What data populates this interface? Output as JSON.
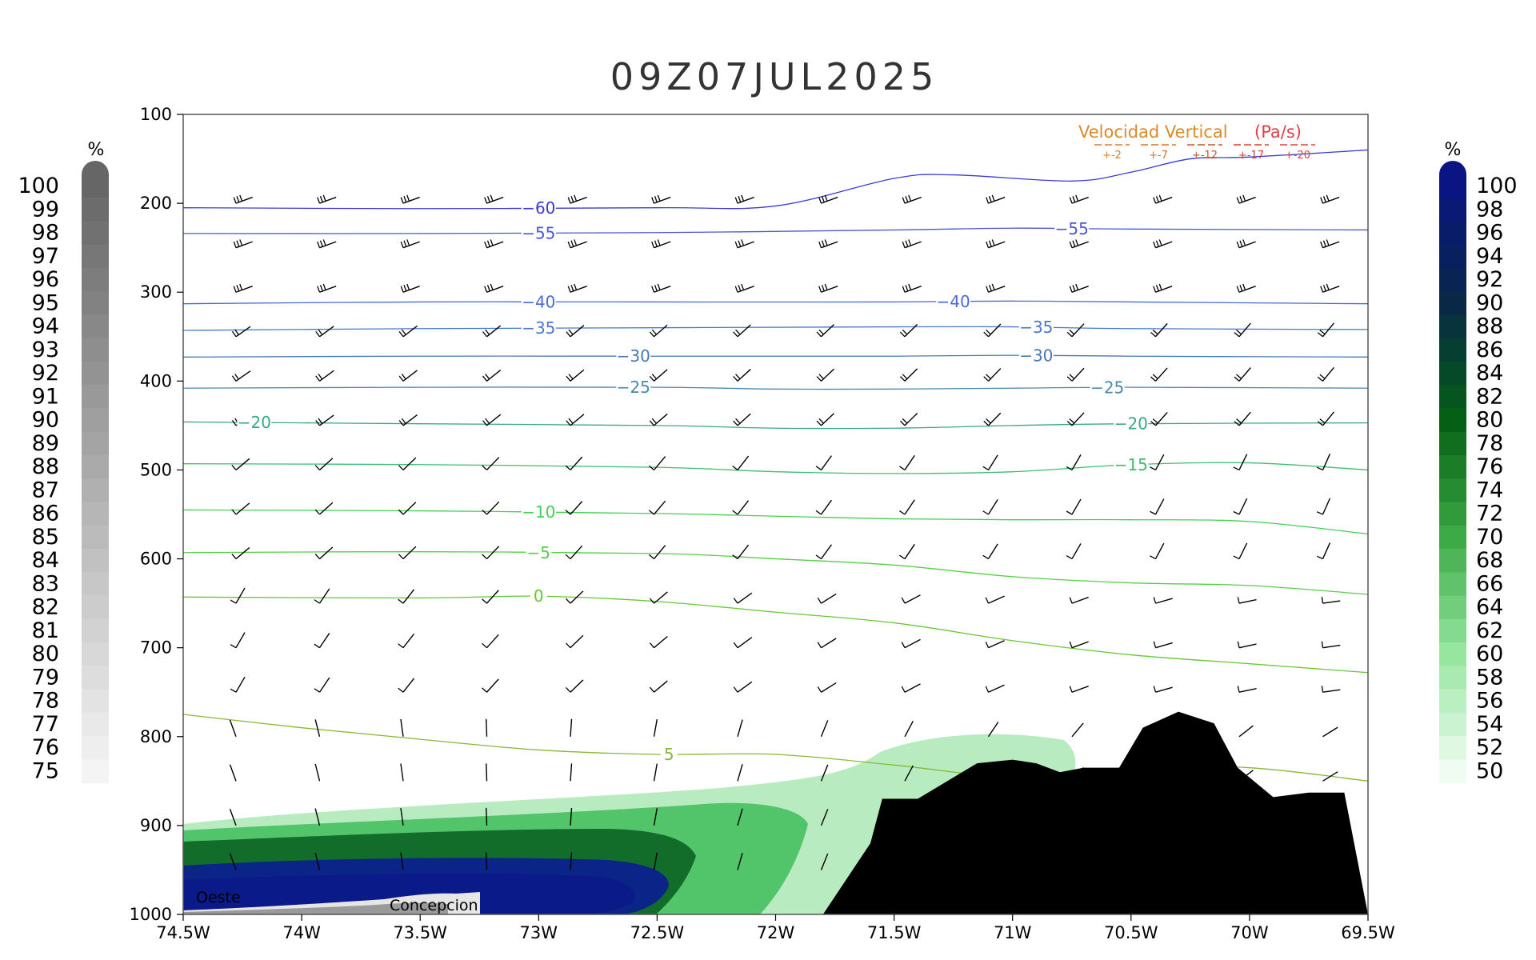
{
  "chart_data": {
    "type": "cross-section",
    "title": "09Z07JUL2025",
    "x_ticks": [
      "74.5W",
      "74W",
      "73.5W",
      "73W",
      "72.5W",
      "72W",
      "71.5W",
      "71W",
      "70.5W",
      "70W",
      "69.5W"
    ],
    "y_ticks": [
      "100",
      "200",
      "300",
      "400",
      "500",
      "600",
      "700",
      "800",
      "900",
      "1000"
    ],
    "xlim": [
      -74.5,
      -69.5
    ],
    "ylim": [
      1000,
      100
    ],
    "grid": false,
    "temperature_contours": [
      {
        "label": "-60",
        "color": "#3a3ad8",
        "points": [
          [
            -74.5,
            205
          ],
          [
            -73.5,
            206
          ],
          [
            -72.5,
            205
          ],
          [
            -72.0,
            203
          ],
          [
            -71.5,
            172
          ],
          [
            -71.25,
            168
          ],
          [
            -70.75,
            175
          ],
          [
            -70.5,
            165
          ],
          [
            -70.25,
            150
          ],
          [
            -70.0,
            148
          ],
          [
            -69.5,
            140
          ]
        ]
      },
      {
        "label": "-55",
        "color": "#4a58d8",
        "points": [
          [
            -74.5,
            234
          ],
          [
            -73.5,
            234
          ],
          [
            -72.5,
            233
          ],
          [
            -71.5,
            230
          ],
          [
            -71.0,
            228
          ],
          [
            -70.5,
            229
          ],
          [
            -69.5,
            230
          ]
        ]
      },
      {
        "label": "-40",
        "color": "#4a6ad8",
        "points": [
          [
            -74.5,
            313
          ],
          [
            -73.5,
            311
          ],
          [
            -72.5,
            311
          ],
          [
            -71.5,
            311
          ],
          [
            -71.0,
            310
          ],
          [
            -70.5,
            311
          ],
          [
            -69.5,
            313
          ]
        ]
      },
      {
        "label": "-35",
        "color": "#4a78cf",
        "points": [
          [
            -74.5,
            343
          ],
          [
            -73.5,
            341
          ],
          [
            -72.5,
            340
          ],
          [
            -71.5,
            339
          ],
          [
            -71.0,
            339
          ],
          [
            -70.5,
            341
          ],
          [
            -69.5,
            342
          ]
        ]
      },
      {
        "label": "-30",
        "color": "#4878b8",
        "points": [
          [
            -74.5,
            373
          ],
          [
            -73.5,
            372
          ],
          [
            -72.5,
            372
          ],
          [
            -71.5,
            372
          ],
          [
            -71.0,
            371
          ],
          [
            -70.5,
            372
          ],
          [
            -69.5,
            373
          ]
        ]
      },
      {
        "label": "-25",
        "color": "#4a8aae",
        "points": [
          [
            -74.5,
            408
          ],
          [
            -73.5,
            407
          ],
          [
            -72.5,
            407
          ],
          [
            -72.0,
            409
          ],
          [
            -71.5,
            409
          ],
          [
            -71.0,
            408
          ],
          [
            -70.5,
            407
          ],
          [
            -69.5,
            408
          ]
        ]
      },
      {
        "label": "-20",
        "color": "#3aa888",
        "points": [
          [
            -74.5,
            446
          ],
          [
            -73.5,
            448
          ],
          [
            -72.5,
            450
          ],
          [
            -72.0,
            453
          ],
          [
            -71.5,
            453
          ],
          [
            -71.0,
            450
          ],
          [
            -70.5,
            448
          ],
          [
            -69.5,
            447
          ]
        ]
      },
      {
        "label": "-15",
        "color": "#3cbf70",
        "points": [
          [
            -74.5,
            493
          ],
          [
            -73.5,
            494
          ],
          [
            -72.5,
            497
          ],
          [
            -72.0,
            502
          ],
          [
            -71.5,
            504
          ],
          [
            -71.0,
            502
          ],
          [
            -70.5,
            494
          ],
          [
            -70.0,
            492
          ],
          [
            -69.5,
            500
          ]
        ]
      },
      {
        "label": "-10",
        "color": "#44cf55",
        "points": [
          [
            -74.5,
            545
          ],
          [
            -73.5,
            546
          ],
          [
            -72.5,
            549
          ],
          [
            -72.0,
            552
          ],
          [
            -71.5,
            555
          ],
          [
            -71.0,
            556
          ],
          [
            -70.5,
            556
          ],
          [
            -70.0,
            558
          ],
          [
            -69.5,
            572
          ]
        ]
      },
      {
        "label": "-5",
        "color": "#55d044",
        "points": [
          [
            -74.5,
            593
          ],
          [
            -73.5,
            592
          ],
          [
            -72.5,
            594
          ],
          [
            -72.0,
            600
          ],
          [
            -71.5,
            607
          ],
          [
            -71.0,
            620
          ],
          [
            -70.5,
            627
          ],
          [
            -70.0,
            630
          ],
          [
            -69.5,
            640
          ]
        ]
      },
      {
        "label": "0",
        "color": "#66c833",
        "points": [
          [
            -74.5,
            643
          ],
          [
            -73.5,
            644
          ],
          [
            -73.0,
            642
          ],
          [
            -72.5,
            648
          ],
          [
            -72.0,
            660
          ],
          [
            -71.5,
            672
          ],
          [
            -71.0,
            692
          ],
          [
            -70.5,
            708
          ],
          [
            -70.0,
            718
          ],
          [
            -69.5,
            728
          ]
        ]
      },
      {
        "label": "5",
        "color": "#88b833",
        "points": [
          [
            -74.5,
            775
          ],
          [
            -74.0,
            790
          ],
          [
            -73.5,
            803
          ],
          [
            -73.0,
            815
          ],
          [
            -72.5,
            820
          ],
          [
            -72.0,
            820
          ],
          [
            -71.5,
            832
          ],
          [
            -71.0,
            845
          ],
          [
            -70.5,
            835
          ],
          [
            -70.0,
            835
          ],
          [
            -69.5,
            850
          ]
        ]
      }
    ],
    "terrain": [
      [
        -71.8,
        1000
      ],
      [
        -71.6,
        920
      ],
      [
        -71.55,
        870
      ],
      [
        -71.4,
        870
      ],
      [
        -71.15,
        830
      ],
      [
        -71.0,
        826
      ],
      [
        -70.9,
        830
      ],
      [
        -70.8,
        840
      ],
      [
        -70.7,
        835
      ],
      [
        -70.55,
        835
      ],
      [
        -70.45,
        790
      ],
      [
        -70.3,
        772
      ],
      [
        -70.15,
        785
      ],
      [
        -70.05,
        835
      ],
      [
        -69.9,
        868
      ],
      [
        -69.75,
        863
      ],
      [
        -69.6,
        863
      ],
      [
        -69.5,
        1000
      ]
    ],
    "rh_left_label": "%",
    "rh_left_scale": [
      "100",
      "99",
      "98",
      "97",
      "96",
      "95",
      "94",
      "93",
      "92",
      "91",
      "90",
      "89",
      "88",
      "87",
      "86",
      "85",
      "84",
      "83",
      "82",
      "81",
      "80",
      "79",
      "78",
      "77",
      "76",
      "75"
    ],
    "rh_right_label": "%",
    "rh_right_scale": [
      "100",
      "98",
      "96",
      "94",
      "92",
      "90",
      "88",
      "86",
      "84",
      "82",
      "80",
      "78",
      "76",
      "74",
      "72",
      "70",
      "68",
      "66",
      "64",
      "62",
      "60",
      "58",
      "56",
      "54",
      "52",
      "50"
    ],
    "vertical_velocity_legend": {
      "title_a": "Velocidad Vertical",
      "title_b": "(Pa/s)",
      "steps": [
        "+-2",
        "+-7",
        "+-12",
        "+-17",
        "+-20"
      ],
      "colors": [
        "#d97e2a",
        "#d8732c",
        "#c8552a",
        "#d8402e",
        "#e2403a"
      ]
    },
    "places": [
      "Oeste",
      "Concepcion"
    ],
    "wind_barbs_columns": 14
  }
}
